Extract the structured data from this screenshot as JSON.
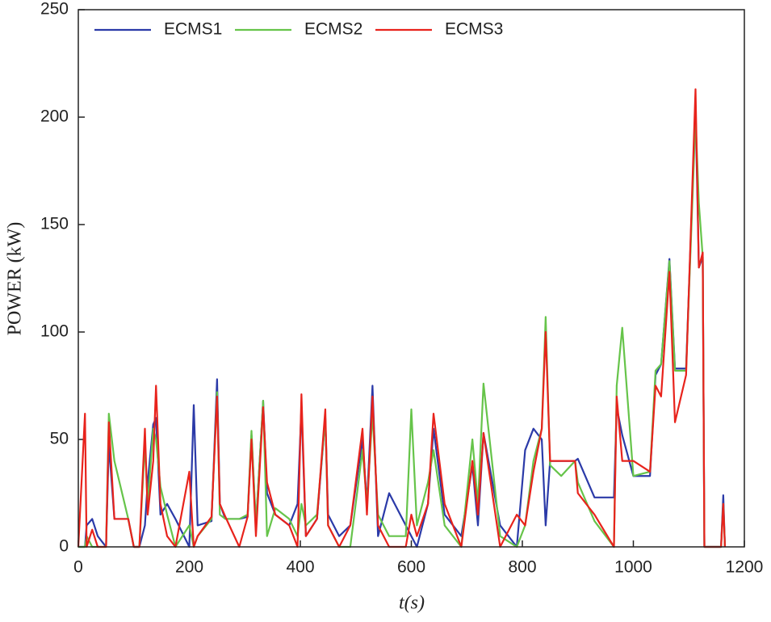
{
  "chart_data": {
    "type": "line",
    "xlabel": "t(s)",
    "ylabel": "POWER (kW)",
    "xlim": [
      0,
      1200
    ],
    "xticks": [
      0,
      200,
      400,
      600,
      800,
      1000,
      1200
    ],
    "ylim": [
      0,
      250
    ],
    "yticks": [
      0,
      50,
      100,
      150,
      200,
      250
    ],
    "legend": "upper-left",
    "x": [
      0,
      12,
      15,
      25,
      35,
      50,
      55,
      65,
      90,
      100,
      110,
      120,
      125,
      135,
      140,
      148,
      160,
      175,
      200,
      208,
      215,
      240,
      250,
      255,
      265,
      290,
      305,
      312,
      320,
      333,
      340,
      355,
      380,
      395,
      402,
      410,
      430,
      445,
      450,
      470,
      490,
      512,
      520,
      530,
      540,
      560,
      590,
      600,
      610,
      630,
      640,
      660,
      690,
      710,
      720,
      730,
      760,
      790,
      805,
      820,
      835,
      842,
      850,
      870,
      895,
      900,
      930,
      965,
      970,
      980,
      1000,
      1030,
      1040,
      1050,
      1065,
      1075,
      1095,
      1112,
      1118,
      1125,
      1128,
      1158,
      1162,
      1165
    ],
    "series": [
      {
        "name": "ECMS1",
        "color": "#2b3aa8",
        "values": [
          0,
          0,
          10,
          13,
          5,
          0,
          48,
          13,
          13,
          0,
          0,
          10,
          30,
          57,
          60,
          15,
          20,
          13,
          0,
          66,
          10,
          12,
          78,
          20,
          13,
          13,
          14,
          52,
          10,
          68,
          25,
          15,
          10,
          20,
          65,
          5,
          13,
          60,
          15,
          5,
          10,
          50,
          20,
          75,
          5,
          25,
          10,
          5,
          0,
          20,
          55,
          15,
          5,
          38,
          10,
          53,
          10,
          0,
          45,
          55,
          50,
          10,
          40,
          40,
          40,
          41,
          23,
          23,
          65,
          52,
          33,
          33,
          80,
          85,
          134,
          83,
          83,
          205,
          130,
          135,
          0,
          0,
          24,
          0
        ]
      },
      {
        "name": "ECMS2",
        "color": "#66c44a",
        "values": [
          0,
          0,
          5,
          0,
          0,
          0,
          62,
          40,
          13,
          0,
          0,
          48,
          20,
          55,
          50,
          28,
          15,
          0,
          10,
          0,
          5,
          13,
          72,
          15,
          13,
          13,
          15,
          54,
          10,
          68,
          5,
          18,
          13,
          5,
          20,
          10,
          15,
          60,
          10,
          0,
          0,
          45,
          20,
          62,
          15,
          5,
          5,
          64,
          10,
          30,
          45,
          10,
          0,
          50,
          20,
          76,
          5,
          0,
          10,
          40,
          55,
          107,
          38,
          33,
          40,
          30,
          12,
          0,
          75,
          102,
          33,
          35,
          82,
          85,
          133,
          82,
          82,
          200,
          160,
          135,
          0,
          0,
          20,
          0
        ]
      },
      {
        "name": "ECMS3",
        "color": "#e8231c",
        "values": [
          0,
          62,
          0,
          8,
          0,
          0,
          58,
          13,
          13,
          0,
          0,
          55,
          15,
          40,
          75,
          20,
          5,
          0,
          35,
          0,
          5,
          14,
          70,
          20,
          14,
          0,
          14,
          50,
          5,
          65,
          30,
          15,
          10,
          0,
          71,
          5,
          13,
          64,
          10,
          0,
          10,
          55,
          15,
          70,
          10,
          0,
          0,
          15,
          5,
          20,
          62,
          20,
          0,
          40,
          15,
          53,
          0,
          15,
          10,
          35,
          55,
          100,
          40,
          40,
          40,
          25,
          15,
          0,
          70,
          40,
          40,
          35,
          75,
          70,
          128,
          58,
          80,
          213,
          130,
          137,
          0,
          0,
          20,
          0
        ]
      }
    ]
  }
}
